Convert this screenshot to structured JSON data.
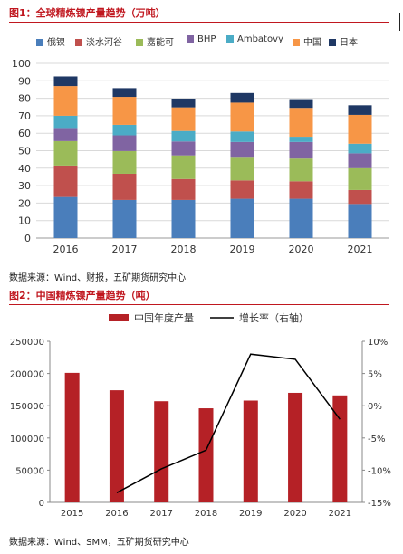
{
  "figure1": {
    "title": "图1：全球精炼镍产量趋势（万吨）",
    "source": "数据来源：Wind、财报，五矿期货研究中心"
  },
  "figure2": {
    "title": "图2：中国精炼镍产量趋势（吨）",
    "source": "数据来源：Wind、SMM，五矿期货研究中心"
  },
  "colors": {
    "title_red": "#c0171f",
    "bar_red": "#b52126",
    "line_black": "#000000"
  },
  "chart_data": [
    {
      "type": "bar",
      "stacked": true,
      "categories": [
        "2016",
        "2017",
        "2018",
        "2019",
        "2020",
        "2021"
      ],
      "series": [
        {
          "name": "俄镍",
          "color": "#4a7ebb",
          "values": [
            23.5,
            21.8,
            21.8,
            22.5,
            22.5,
            19.5
          ]
        },
        {
          "name": "淡水河谷",
          "color": "#c0504d",
          "values": [
            18,
            15,
            12,
            10.5,
            10,
            8
          ]
        },
        {
          "name": "嘉能可",
          "color": "#9bbb59",
          "values": [
            14,
            13,
            13.5,
            13.5,
            13,
            12.5
          ]
        },
        {
          "name": "BHP",
          "color": "#8064a2",
          "values": [
            7.5,
            9,
            8,
            8.5,
            9.5,
            8.5
          ]
        },
        {
          "name": "Ambatovy",
          "color": "#4bacc6",
          "values": [
            7,
            6,
            6,
            6,
            3,
            5.5
          ]
        },
        {
          "name": "中国",
          "color": "#f79646",
          "values": [
            17,
            16,
            13.5,
            16.5,
            16.5,
            16.5
          ]
        },
        {
          "name": "日本",
          "color": "#1f3864",
          "values": [
            5.5,
            5,
            5,
            5.5,
            5,
            5.5
          ]
        }
      ],
      "ylim": [
        0,
        100
      ],
      "yticks": [
        0,
        10,
        20,
        30,
        40,
        50,
        60,
        70,
        80,
        90,
        100
      ],
      "grid": true,
      "legend": "top"
    },
    {
      "type": "bar+line",
      "categories": [
        "2015",
        "2016",
        "2017",
        "2018",
        "2019",
        "2020",
        "2021"
      ],
      "bar": {
        "name": "中国年度产量",
        "values": [
          201000,
          174000,
          157000,
          146000,
          158000,
          170000,
          166000
        ]
      },
      "line": {
        "name": "增长率（右轴）",
        "values": [
          null,
          -13.5,
          -9.8,
          -6.9,
          8.0,
          7.2,
          -2.1
        ]
      },
      "ylim": [
        0,
        250000
      ],
      "yticks": [
        0,
        50000,
        100000,
        150000,
        200000,
        250000
      ],
      "y2lim": [
        -15,
        10
      ],
      "y2ticks": [
        "-15%",
        "-10%",
        "-5%",
        "0%",
        "5%",
        "10%"
      ],
      "grid": false,
      "legend": "top"
    }
  ]
}
